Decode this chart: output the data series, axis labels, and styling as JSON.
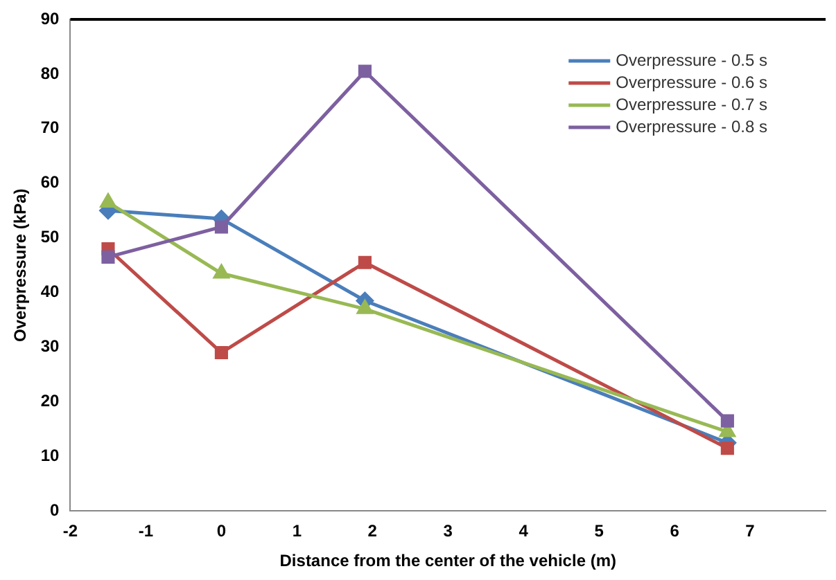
{
  "chart_data": {
    "type": "line",
    "xlabel": "Distance from the center of the vehicle (m)",
    "ylabel": "Overpressure (kPa)",
    "xlim": [
      -2,
      8
    ],
    "xticks": [
      -2,
      -1,
      0,
      1,
      2,
      3,
      4,
      5,
      6,
      7
    ],
    "ylim": [
      0,
      90
    ],
    "yticks": [
      0,
      10,
      20,
      30,
      40,
      50,
      60,
      70,
      80,
      90
    ],
    "grid": false,
    "legend": "top right",
    "line_style": "solid",
    "series": [
      {
        "name": "Overpressure - 0.5 s",
        "color": "#4a7ebb",
        "marker": "diamond",
        "x": [
          -1.5,
          0,
          1.9,
          6.7
        ],
        "values": [
          55,
          53.5,
          38.5,
          12.5
        ]
      },
      {
        "name": "Overpressure - 0.6 s",
        "color": "#be4b48",
        "marker": "square",
        "x": [
          -1.5,
          0,
          1.9,
          6.7
        ],
        "values": [
          48,
          29,
          45.5,
          11.5
        ]
      },
      {
        "name": "Overpressure - 0.7 s",
        "color": "#98b954",
        "marker": "triangle",
        "x": [
          -1.5,
          0,
          1.9,
          6.7
        ],
        "values": [
          56.5,
          43.5,
          37,
          14.5
        ]
      },
      {
        "name": "Overpressure - 0.8 s",
        "color": "#7d60a0",
        "marker": "square",
        "x": [
          -1.5,
          0,
          1.9,
          6.7
        ],
        "values": [
          46.5,
          52,
          80.5,
          16.5
        ]
      }
    ]
  }
}
